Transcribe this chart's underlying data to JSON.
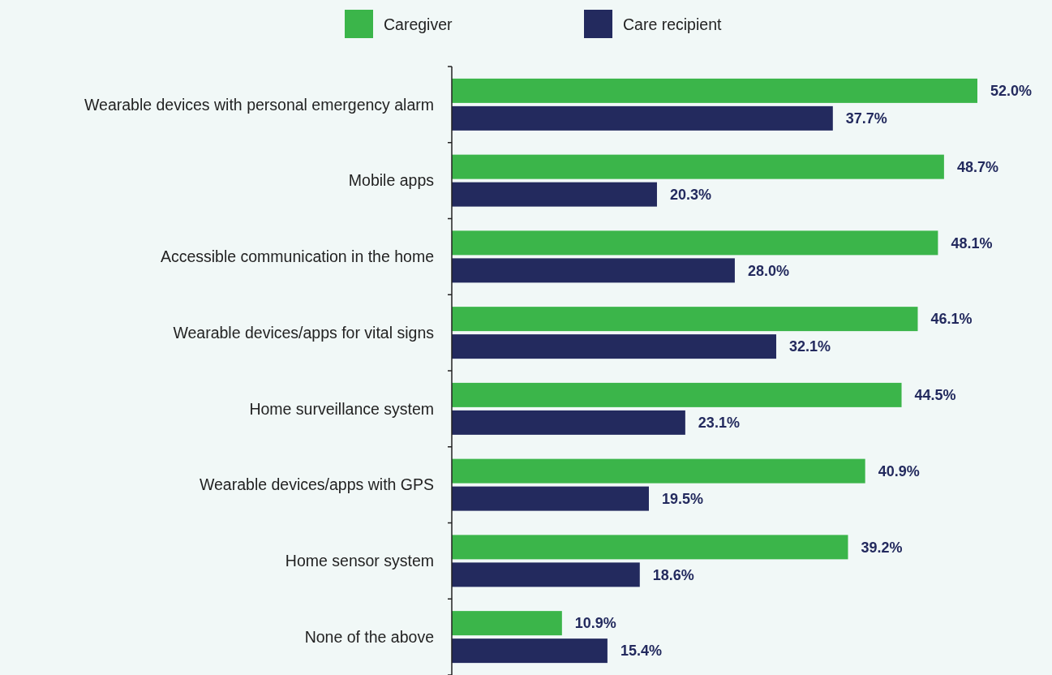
{
  "chart_data": {
    "type": "bar",
    "orientation": "horizontal",
    "legend": "top",
    "categories": [
      "Wearable devices with personal emergency alarm",
      "Mobile apps",
      "Accessible communication in the home",
      "Wearable devices/apps for vital signs",
      "Home surveillance system",
      "Wearable devices/apps with GPS",
      "Home sensor system",
      "None of the above"
    ],
    "series": [
      {
        "name": "Caregiver",
        "color": "#3bb54a",
        "values": [
          52.0,
          48.7,
          48.1,
          46.1,
          44.5,
          40.9,
          39.2,
          10.9
        ],
        "value_labels": [
          "52.0%",
          "48.7%",
          "48.1%",
          "46.1%",
          "44.5%",
          "40.9%",
          "39.2%",
          "10.9%"
        ]
      },
      {
        "name": "Care recipient",
        "color": "#232a5e",
        "values": [
          37.7,
          20.3,
          28.0,
          32.1,
          23.1,
          19.5,
          18.6,
          15.4
        ],
        "value_labels": [
          "37.7%",
          "20.3%",
          "28.0%",
          "32.1%",
          "23.1%",
          "19.5%",
          "18.6%",
          "15.4%"
        ]
      }
    ]
  }
}
